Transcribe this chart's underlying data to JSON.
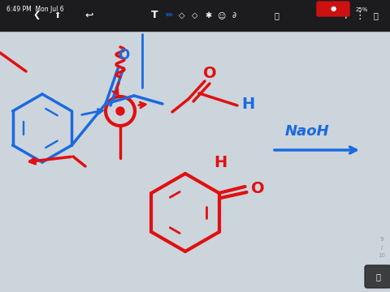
{
  "bg": "#ccd4dc",
  "toolbar_bg": "#1c1c1e",
  "red": "#e01010",
  "blue": "#1a6ae0",
  "lw": 2.5,
  "lw2": 2.0,
  "lw3": 1.6,
  "status_bar": "6:49 PM  Mon Jul 6",
  "battery": "25%",
  "naoh": "NaoH"
}
